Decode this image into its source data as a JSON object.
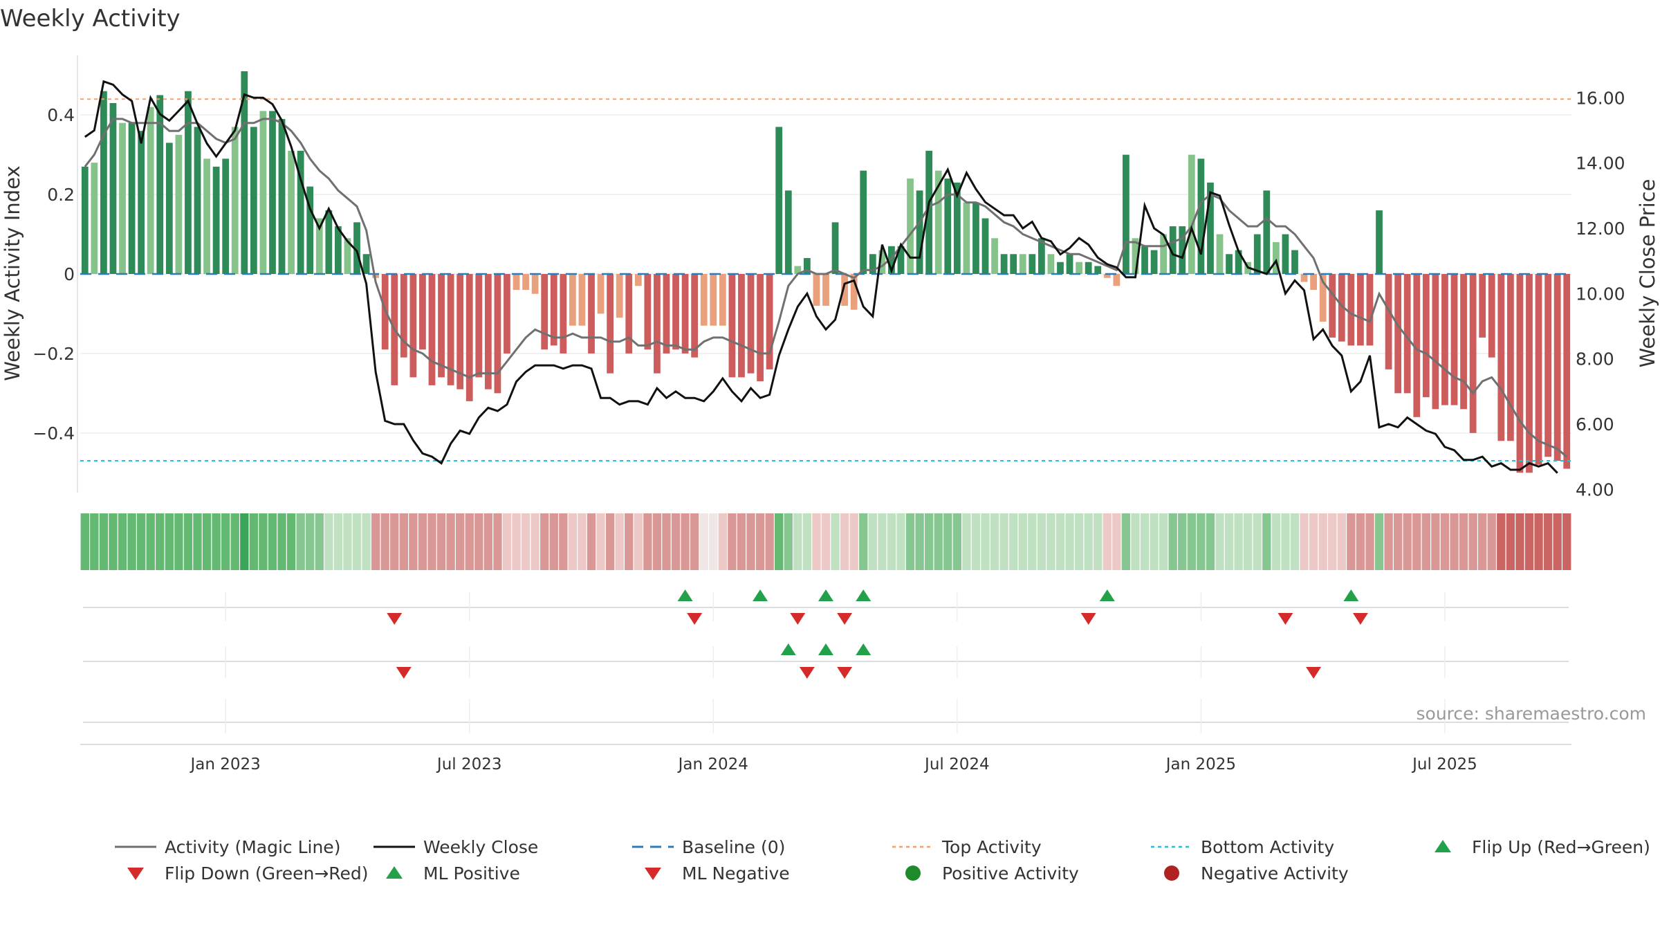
{
  "chart_data": {
    "type": "bar",
    "title": "Weekly Activity",
    "ylabel_left": "Weekly Activity Index",
    "ylabel_right": "Weekly Close Price",
    "source": "source: sharemaestro.com",
    "ylim_left": [
      -0.55,
      0.55
    ],
    "ylim_right": [
      3.9,
      17.3
    ],
    "yticks_left": [
      {
        "v": 0.4,
        "label": "0.4"
      },
      {
        "v": 0.2,
        "label": "0.2"
      },
      {
        "v": 0.0,
        "label": "0"
      },
      {
        "v": -0.2,
        "label": "−0.2"
      },
      {
        "v": -0.4,
        "label": "−0.4"
      }
    ],
    "yticks_right": [
      {
        "v": 16,
        "label": "16.00"
      },
      {
        "v": 14,
        "label": "14.00"
      },
      {
        "v": 12,
        "label": "12.00"
      },
      {
        "v": 10,
        "label": "10.00"
      },
      {
        "v": 8,
        "label": "8.00"
      },
      {
        "v": 6,
        "label": "6.00"
      },
      {
        "v": 4,
        "label": "4.00"
      }
    ],
    "x_ticks": [
      {
        "week": 15,
        "label": "Jan 2023"
      },
      {
        "week": 41,
        "label": "Jul 2023"
      },
      {
        "week": 67,
        "label": "Jan 2024"
      },
      {
        "week": 93,
        "label": "Jul 2024"
      },
      {
        "week": 119,
        "label": "Jan 2025"
      },
      {
        "week": 145,
        "label": "Jul 2025"
      }
    ],
    "top_activity": 0.44,
    "bottom_activity": -0.47,
    "activity": [
      0.27,
      0.28,
      0.46,
      0.43,
      0.38,
      0.38,
      0.36,
      0.42,
      0.45,
      0.33,
      0.35,
      0.46,
      0.37,
      0.29,
      0.27,
      0.29,
      0.37,
      0.51,
      0.37,
      0.41,
      0.41,
      0.39,
      0.31,
      0.31,
      0.22,
      0.14,
      0.16,
      0.12,
      0.09,
      0.13,
      0.05,
      -0.01,
      -0.19,
      -0.28,
      -0.21,
      -0.26,
      -0.19,
      -0.28,
      -0.26,
      -0.28,
      -0.29,
      -0.32,
      -0.26,
      -0.29,
      -0.3,
      -0.2,
      -0.04,
      -0.04,
      -0.05,
      -0.19,
      -0.18,
      -0.2,
      -0.13,
      -0.13,
      -0.2,
      -0.1,
      -0.25,
      -0.11,
      -0.2,
      -0.03,
      -0.19,
      -0.25,
      -0.2,
      -0.19,
      -0.2,
      -0.21,
      -0.13,
      -0.13,
      -0.13,
      -0.26,
      -0.26,
      -0.25,
      -0.27,
      -0.24,
      0.37,
      0.21,
      0.02,
      0.04,
      -0.08,
      -0.08,
      0.13,
      -0.08,
      -0.09,
      0.26,
      0.05,
      0.06,
      0.07,
      0.07,
      0.24,
      0.21,
      0.31,
      0.26,
      0.24,
      0.23,
      0.18,
      0.18,
      0.14,
      0.09,
      0.05,
      0.05,
      0.05,
      0.05,
      0.09,
      0.05,
      0.03,
      0.05,
      0.03,
      0.03,
      0.02,
      -0.01,
      -0.03,
      0.3,
      0.09,
      0.07,
      0.06,
      0.1,
      0.12,
      0.12,
      0.3,
      0.29,
      0.23,
      0.1,
      0.05,
      0.06,
      0.03,
      0.1,
      0.21,
      0.08,
      0.1,
      0.06,
      -0.02,
      -0.04,
      -0.12,
      -0.16,
      -0.17,
      -0.18,
      -0.18,
      -0.18,
      0.16,
      -0.24,
      -0.3,
      -0.3,
      -0.36,
      -0.31,
      -0.34,
      -0.33,
      -0.33,
      -0.34,
      -0.4,
      -0.16,
      -0.21,
      -0.42,
      -0.42,
      -0.5,
      -0.5,
      -0.48,
      -0.46,
      -0.47,
      -0.49
    ],
    "magic_line": [
      0.27,
      0.3,
      0.35,
      0.39,
      0.39,
      0.38,
      0.38,
      0.38,
      0.38,
      0.36,
      0.36,
      0.38,
      0.38,
      0.36,
      0.34,
      0.33,
      0.34,
      0.38,
      0.38,
      0.39,
      0.39,
      0.38,
      0.36,
      0.33,
      0.29,
      0.26,
      0.24,
      0.21,
      0.19,
      0.17,
      0.11,
      -0.02,
      -0.09,
      -0.14,
      -0.17,
      -0.19,
      -0.2,
      -0.22,
      -0.23,
      -0.24,
      -0.25,
      -0.26,
      -0.25,
      -0.25,
      -0.25,
      -0.22,
      -0.19,
      -0.16,
      -0.14,
      -0.15,
      -0.16,
      -0.16,
      -0.15,
      -0.16,
      -0.16,
      -0.16,
      -0.17,
      -0.17,
      -0.16,
      -0.18,
      -0.18,
      -0.17,
      -0.18,
      -0.18,
      -0.19,
      -0.19,
      -0.17,
      -0.16,
      -0.16,
      -0.17,
      -0.18,
      -0.19,
      -0.2,
      -0.2,
      -0.12,
      -0.03,
      0.0,
      0.01,
      0.0,
      0.0,
      0.01,
      0.0,
      -0.01,
      0.01,
      0.01,
      0.02,
      0.04,
      0.07,
      0.1,
      0.13,
      0.17,
      0.18,
      0.2,
      0.2,
      0.18,
      0.18,
      0.17,
      0.15,
      0.13,
      0.12,
      0.1,
      0.09,
      0.08,
      0.07,
      0.06,
      0.05,
      0.05,
      0.04,
      0.03,
      0.02,
      0.01,
      0.08,
      0.08,
      0.07,
      0.07,
      0.07,
      0.08,
      0.09,
      0.12,
      0.18,
      0.2,
      0.19,
      0.16,
      0.14,
      0.12,
      0.12,
      0.14,
      0.12,
      0.12,
      0.1,
      0.07,
      0.04,
      -0.02,
      -0.05,
      -0.08,
      -0.1,
      -0.11,
      -0.12,
      -0.05,
      -0.09,
      -0.13,
      -0.16,
      -0.19,
      -0.2,
      -0.22,
      -0.24,
      -0.26,
      -0.27,
      -0.3,
      -0.27,
      -0.26,
      -0.29,
      -0.33,
      -0.37,
      -0.4,
      -0.42,
      -0.43,
      -0.44,
      -0.46
    ],
    "weekly_close": [
      14.8,
      15,
      16.5,
      16.4,
      16.1,
      15.9,
      14.6,
      16,
      15.5,
      15.3,
      15.6,
      15.9,
      15.2,
      14.6,
      14.2,
      14.6,
      15,
      16.1,
      16,
      16,
      15.8,
      15.3,
      14.5,
      13.5,
      12.6,
      12,
      12.6,
      12,
      11.6,
      11.3,
      10.3,
      7.6,
      6.1,
      6,
      6,
      5.5,
      5.1,
      5,
      4.8,
      5.4,
      5.8,
      5.7,
      6.2,
      6.5,
      6.4,
      6.6,
      7.3,
      7.6,
      7.8,
      7.8,
      7.8,
      7.7,
      7.8,
      7.8,
      7.7,
      6.8,
      6.8,
      6.6,
      6.7,
      6.7,
      6.6,
      7.1,
      6.8,
      7,
      6.8,
      6.8,
      6.7,
      7,
      7.4,
      7,
      6.7,
      7.1,
      6.8,
      6.9,
      8.1,
      8.9,
      9.6,
      10,
      9.3,
      8.9,
      9.2,
      10.3,
      10.4,
      9.6,
      9.3,
      11.5,
      10.7,
      11.5,
      11.1,
      11.1,
      12.8,
      13.3,
      13.8,
      13,
      13.7,
      13.2,
      12.8,
      12.6,
      12.4,
      12.4,
      12,
      12.2,
      11.7,
      11.6,
      11.2,
      11.4,
      11.7,
      11.5,
      11.1,
      10.9,
      10.8,
      10.5,
      10.5,
      12.7,
      12,
      11.8,
      11.2,
      11.1,
      12,
      11.2,
      13.1,
      13,
      12.1,
      11.3,
      10.8,
      10.7,
      10.6,
      11,
      10,
      10.4,
      10.1,
      8.6,
      8.9,
      8.4,
      8.1,
      7,
      7.3,
      8.1,
      5.9,
      6,
      5.9,
      6.2,
      6,
      5.8,
      5.7,
      5.3,
      5.2,
      4.9,
      4.9,
      5,
      4.7,
      4.8,
      4.6,
      4.6,
      4.8,
      4.7,
      4.8,
      4.5
    ],
    "heat_strip": [
      3,
      3,
      3,
      3,
      3,
      3,
      3,
      3,
      3,
      3,
      3,
      3,
      3,
      3,
      3,
      3,
      3,
      4,
      3,
      3,
      3,
      3,
      3,
      2,
      2,
      2,
      1,
      1,
      1,
      1,
      1,
      -2,
      -2,
      -2,
      -2,
      -2,
      -2,
      -2,
      -2,
      -2,
      -2,
      -2,
      -2,
      -2,
      -2,
      -1,
      -1,
      -1,
      -1,
      -2,
      -2,
      -2,
      -1,
      -1,
      -2,
      -1,
      -2,
      -1,
      -2,
      -1,
      -2,
      -2,
      -2,
      -2,
      -2,
      -2,
      0,
      0,
      -1,
      -2,
      -2,
      -2,
      -2,
      -2,
      3,
      2,
      1,
      1,
      -1,
      -1,
      1,
      -1,
      -1,
      2,
      1,
      1,
      1,
      1,
      2,
      2,
      2,
      2,
      2,
      2,
      1,
      1,
      1,
      1,
      1,
      1,
      1,
      1,
      1,
      1,
      1,
      1,
      1,
      1,
      1,
      -1,
      -1,
      2,
      1,
      1,
      1,
      1,
      2,
      2,
      2,
      2,
      2,
      1,
      1,
      1,
      1,
      1,
      2,
      1,
      1,
      1,
      -1,
      -1,
      -1,
      -1,
      -1,
      -2,
      -2,
      -2,
      2,
      -2,
      -2,
      -2,
      -2,
      -2,
      -2,
      -2,
      -2,
      -2,
      -2,
      -2,
      -2,
      -3,
      -3,
      -3,
      -3,
      -3,
      -3,
      -3,
      -3
    ],
    "signal_rows": [
      {
        "name": "flip",
        "up": [
          64,
          72,
          79,
          83,
          109,
          135
        ],
        "down": [
          33,
          65,
          76,
          81,
          107,
          128,
          136
        ]
      },
      {
        "name": "ml",
        "up": [
          75,
          79,
          83
        ],
        "down": [
          34,
          77,
          81,
          131
        ]
      },
      {
        "name": "activity_dots",
        "up": [],
        "down": []
      }
    ],
    "legend": [
      {
        "key": "magic",
        "label": "Activity (Magic Line)",
        "color": "#6e6e6e"
      },
      {
        "key": "close",
        "label": "Weekly Close",
        "color": "#111111"
      },
      {
        "key": "baseline",
        "label": "Baseline (0)",
        "color": "#2b7bba"
      },
      {
        "key": "top",
        "label": "Top Activity",
        "color": "#f0a070"
      },
      {
        "key": "bottom",
        "label": "Bottom Activity",
        "color": "#2bbcd0"
      },
      {
        "key": "flip_up",
        "label": "Flip Up (Red→Green)",
        "color": "#22a04a"
      },
      {
        "key": "flip_down",
        "label": "Flip Down (Green→Red)",
        "color": "#d42a2a"
      },
      {
        "key": "ml_pos",
        "label": "ML Positive",
        "color": "#22a04a"
      },
      {
        "key": "ml_neg",
        "label": "ML Negative",
        "color": "#d42a2a"
      },
      {
        "key": "pos_dot",
        "label": "Positive Activity",
        "color": "#1e8a2a"
      },
      {
        "key": "neg_dot",
        "label": "Negative Activity",
        "color": "#b02222"
      }
    ],
    "colors": {
      "pos_dark": "#2e8b57",
      "pos_light": "#86c38a",
      "neg_dark": "#cd5c5c",
      "neg_light": "#e9a07c",
      "top": "#f0a070",
      "bottom": "#2bbcd0",
      "baseline": "#2b7bba"
    }
  }
}
